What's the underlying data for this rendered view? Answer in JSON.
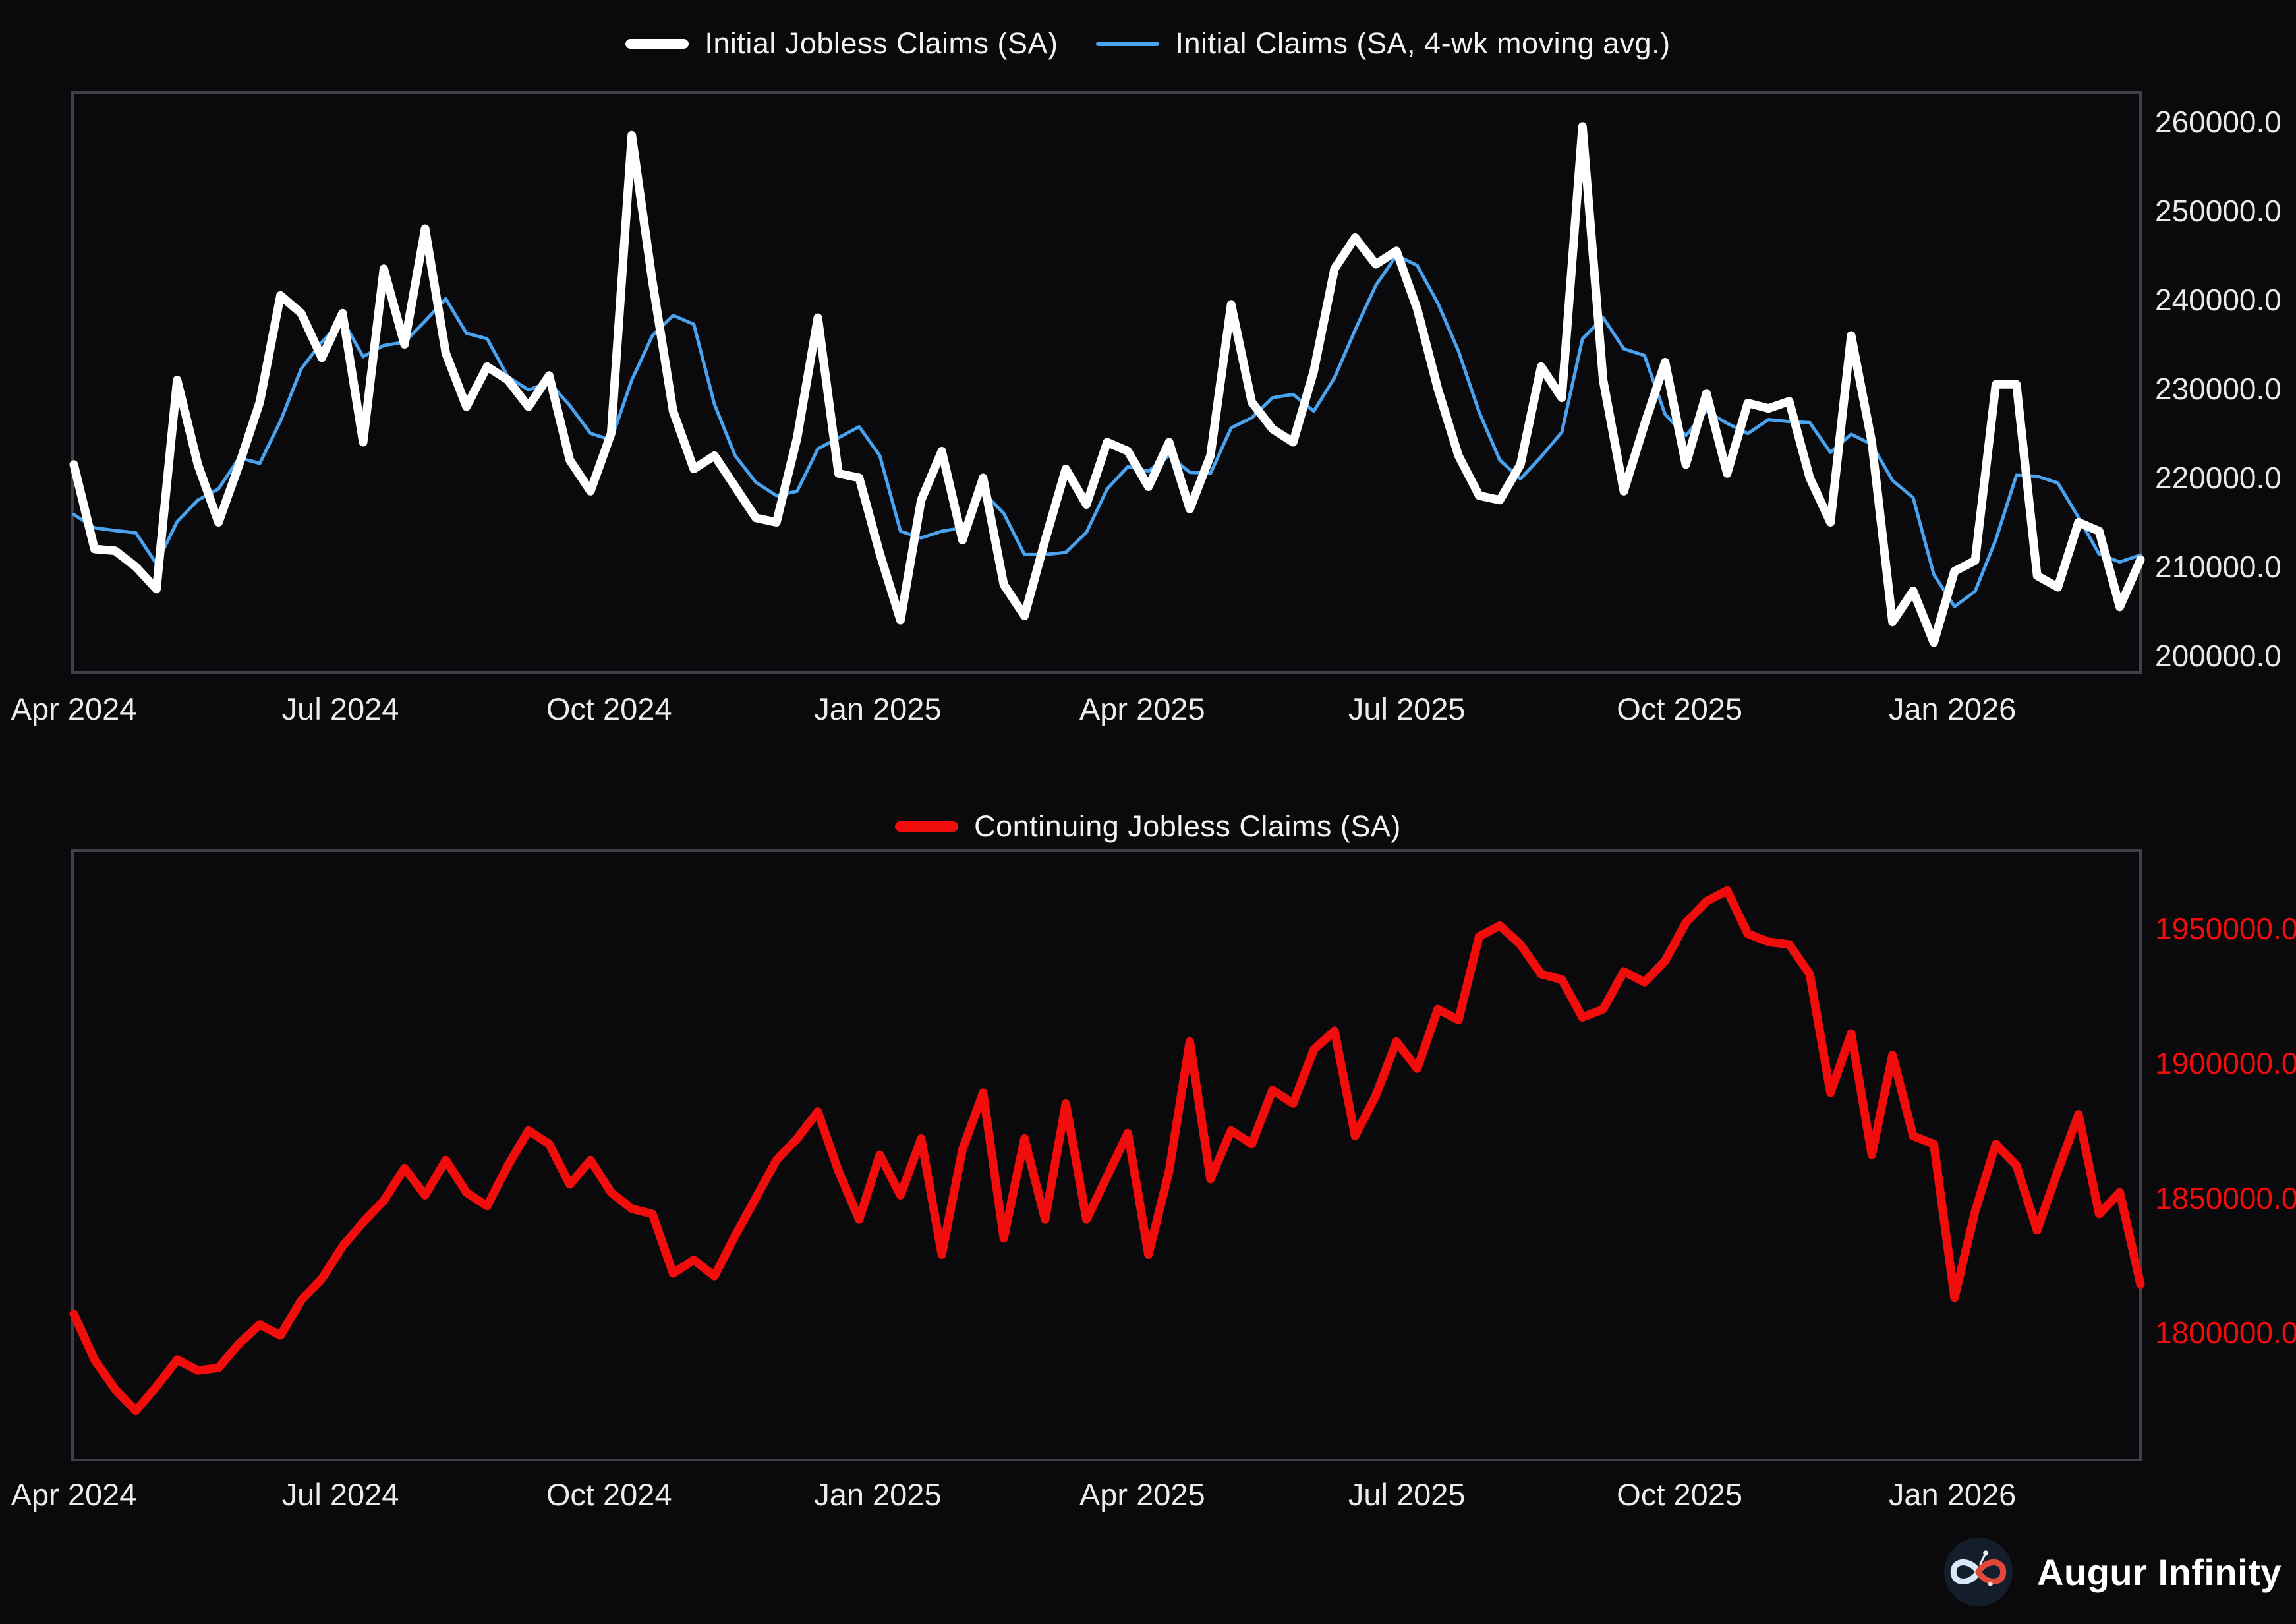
{
  "branding": {
    "name": "Augur Infinity"
  },
  "colors": {
    "background": "#0a0a0d",
    "plot_border": "#3e4148",
    "month_label_text": "#ececec",
    "top_tick_text": "#e9e9e9",
    "bottom_tick_text": "#f20d0d",
    "initial_line": "#ffffff",
    "ma_line": "#4aa3ee",
    "continuing_line": "#f20d0d",
    "logo_circle": "#141e2b",
    "logo_left_loop": "#d9e7f6",
    "logo_right_loop": "#e0483a"
  },
  "chart_data": [
    {
      "type": "line",
      "title": "",
      "frequency": "weekly",
      "x_range": [
        "Apr 2024",
        "Mar 2026"
      ],
      "legend_position": "top-center",
      "grid": false,
      "x_ticks": [
        {
          "label": "Apr 2024",
          "week": 0
        },
        {
          "label": "Jul 2024",
          "week": 12.9
        },
        {
          "label": "Oct 2024",
          "week": 25.9
        },
        {
          "label": "Jan 2025",
          "week": 38.9
        },
        {
          "label": "Apr 2025",
          "week": 51.7
        },
        {
          "label": "Jul 2025",
          "week": 64.5
        },
        {
          "label": "Oct 2025",
          "week": 77.7
        },
        {
          "label": "Jan 2026",
          "week": 90.9
        }
      ],
      "y_ticks": [
        {
          "label": "260000.0",
          "value": 260000
        },
        {
          "label": "250000.0",
          "value": 250000
        },
        {
          "label": "240000.0",
          "value": 240000
        },
        {
          "label": "230000.0",
          "value": 230000
        },
        {
          "label": "220000.0",
          "value": 220000
        },
        {
          "label": "210000.0",
          "value": 210000
        },
        {
          "label": "200000.0",
          "value": 200000
        }
      ],
      "ylim": [
        198000,
        263500
      ],
      "series": [
        {
          "name": "Initial Jobless Claims (SA)",
          "color": "#ffffff",
          "stroke_width": 13,
          "values": [
            221500,
            212000,
            211800,
            210000,
            207500,
            231000,
            221500,
            215000,
            221500,
            228500,
            240500,
            238500,
            233500,
            238500,
            224000,
            243500,
            235000,
            248000,
            234000,
            228000,
            232500,
            231000,
            228000,
            231500,
            222000,
            218500,
            225000,
            258500,
            242000,
            227500,
            221000,
            222500,
            219000,
            215500,
            215000,
            224500,
            238000,
            220500,
            220000,
            211500,
            204000,
            217500,
            223000,
            213000,
            220000,
            208000,
            204500,
            213000,
            221000,
            217000,
            224000,
            223000,
            219000,
            224000,
            216500,
            222500,
            239500,
            228500,
            225500,
            224000,
            232000,
            243500,
            247000,
            244000,
            245500,
            239000,
            230000,
            222500,
            218000,
            217500,
            221500,
            232500,
            229000,
            259500,
            231000,
            218500,
            226000,
            233000,
            221500,
            229500,
            220500,
            228400,
            227800,
            228600,
            220000,
            215000,
            236000,
            224000,
            203800,
            207300,
            201500,
            209500,
            210700,
            230500,
            230500,
            209000,
            207700,
            215000,
            214000,
            205500,
            210800
          ]
        },
        {
          "name": "Initial Claims (SA, 4-wk moving avg.)",
          "color": "#4aa3ee",
          "stroke_width": 5,
          "derived": "4-week trailing moving average of series 0",
          "seed": [
            218000,
            213000,
            211000
          ]
        }
      ]
    },
    {
      "type": "line",
      "title": "",
      "frequency": "weekly",
      "x_range": [
        "Apr 2024",
        "Mar 2026"
      ],
      "legend_position": "top-center",
      "grid": false,
      "x_ticks": [
        {
          "label": "Apr 2024",
          "week": 0
        },
        {
          "label": "Jul 2024",
          "week": 12.9
        },
        {
          "label": "Oct 2024",
          "week": 25.9
        },
        {
          "label": "Jan 2025",
          "week": 38.9
        },
        {
          "label": "Apr 2025",
          "week": 51.7
        },
        {
          "label": "Jul 2025",
          "week": 64.5
        },
        {
          "label": "Oct 2025",
          "week": 77.7
        },
        {
          "label": "Jan 2026",
          "week": 90.9
        }
      ],
      "y_ticks": [
        {
          "label": "1950000.0",
          "value": 1950000
        },
        {
          "label": "1900000.0",
          "value": 1900000
        },
        {
          "label": "1850000.0",
          "value": 1850000
        },
        {
          "label": "1800000.0",
          "value": 1800000
        }
      ],
      "ylim": [
        1753000,
        1979000
      ],
      "series": [
        {
          "name": "Continuing Jobless Claims (SA)",
          "color": "#f20d0d",
          "stroke_width": 13,
          "values": [
            1807000,
            1790000,
            1779000,
            1771000,
            1780000,
            1790000,
            1786000,
            1787000,
            1796000,
            1803000,
            1799000,
            1812000,
            1820000,
            1832000,
            1841000,
            1849000,
            1861000,
            1851000,
            1864000,
            1852000,
            1847000,
            1862000,
            1875000,
            1870000,
            1855000,
            1864000,
            1852000,
            1846000,
            1844000,
            1822000,
            1827000,
            1821000,
            1836000,
            1850000,
            1864000,
            1872000,
            1882000,
            1860000,
            1842000,
            1866000,
            1851000,
            1872000,
            1829000,
            1868000,
            1889000,
            1835000,
            1872000,
            1842000,
            1885000,
            1842000,
            1858000,
            1874000,
            1829000,
            1860000,
            1908000,
            1857000,
            1875000,
            1870000,
            1890000,
            1885000,
            1905000,
            1912000,
            1873000,
            1888000,
            1908000,
            1898000,
            1920000,
            1916000,
            1947000,
            1951000,
            1944000,
            1933000,
            1931000,
            1917000,
            1920000,
            1934000,
            1930000,
            1938000,
            1952000,
            1960000,
            1964000,
            1948000,
            1945000,
            1944000,
            1933000,
            1889000,
            1911000,
            1866000,
            1903000,
            1873000,
            1870000,
            1813000,
            1845000,
            1870000,
            1862000,
            1838000,
            1860000,
            1881000,
            1844000,
            1852000,
            1818000
          ]
        }
      ]
    }
  ]
}
